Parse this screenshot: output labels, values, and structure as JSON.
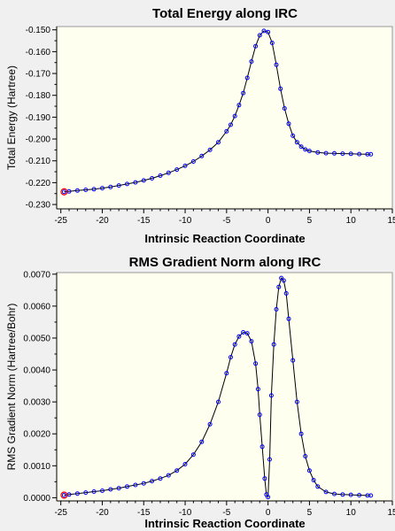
{
  "chart_data": [
    {
      "type": "line",
      "title": "Total Energy along IRC",
      "xlabel": "Intrinsic Reaction Coordinate",
      "ylabel": "Total Energy (Hartree)",
      "xlim": [
        -25.5,
        15
      ],
      "ylim": [
        -0.232,
        -0.1485
      ],
      "xticks": [
        -25,
        -20,
        -15,
        -10,
        -5,
        0,
        5,
        10,
        15
      ],
      "yticks": [
        "-0.150",
        "-0.160",
        "-0.170",
        "-0.180",
        "-0.190",
        "-0.200",
        "-0.210",
        "-0.220",
        "-0.230"
      ],
      "grid": false,
      "legend": "none",
      "plot_bg": "#fffff0",
      "line_color": "#000000",
      "marker_color": "#0000ff",
      "highlight_color": "#ff0000",
      "highlight_point": [
        -24.6,
        -0.2242
      ],
      "series": [
        {
          "x": [
            -24.6,
            -24,
            -23,
            -22,
            -21,
            -20,
            -19,
            -18,
            -17,
            -16,
            -15,
            -14,
            -13,
            -12,
            -11,
            -10,
            -9,
            -8,
            -7,
            -6,
            -5,
            -4.5,
            -4,
            -3.5,
            -3,
            -2.5,
            -2,
            -1.5,
            -1,
            -0.5,
            0,
            0.5,
            1,
            1.5,
            2,
            2.5,
            3,
            3.5,
            4,
            4.5,
            5,
            6,
            7,
            8,
            9,
            10,
            11,
            12,
            12.4
          ],
          "y": [
            -0.2242,
            -0.224,
            -0.2236,
            -0.2233,
            -0.223,
            -0.2225,
            -0.222,
            -0.2213,
            -0.2206,
            -0.2199,
            -0.219,
            -0.218,
            -0.2168,
            -0.2155,
            -0.214,
            -0.2123,
            -0.2103,
            -0.2078,
            -0.205,
            -0.2015,
            -0.1965,
            -0.1935,
            -0.1895,
            -0.1845,
            -0.179,
            -0.172,
            -0.1645,
            -0.1575,
            -0.1525,
            -0.1505,
            -0.151,
            -0.156,
            -0.166,
            -0.177,
            -0.186,
            -0.193,
            -0.1985,
            -0.2015,
            -0.2035,
            -0.2048,
            -0.2055,
            -0.2062,
            -0.2065,
            -0.2066,
            -0.2067,
            -0.2068,
            -0.2069,
            -0.207,
            -0.207
          ]
        }
      ]
    },
    {
      "type": "line",
      "title": "RMS Gradient Norm along IRC",
      "xlabel": "Intrinsic Reaction Coordinate",
      "ylabel": "RMS Gradient Norm (Hartree/Bohr)",
      "xlim": [
        -25.5,
        15
      ],
      "ylim": [
        -0.0001,
        0.00705
      ],
      "xticks": [
        -25,
        -20,
        -15,
        -10,
        -5,
        0,
        5,
        10,
        15
      ],
      "yticks": [
        "0.0000",
        "0.0010",
        "0.0020",
        "0.0030",
        "0.0040",
        "0.0050",
        "0.0060",
        "0.0070"
      ],
      "grid": false,
      "legend": "none",
      "plot_bg": "#fffff0",
      "line_color": "#000000",
      "marker_color": "#0000ff",
      "highlight_color": "#ff0000",
      "highlight_point": [
        -24.6,
        8e-05
      ],
      "series": [
        {
          "x": [
            -24.6,
            -24,
            -23,
            -22,
            -21,
            -20,
            -19,
            -18,
            -17,
            -16,
            -15,
            -14,
            -13,
            -12,
            -11,
            -10,
            -9,
            -8,
            -7,
            -6,
            -5,
            -4.5,
            -4,
            -3.5,
            -3,
            -2.5,
            -2,
            -1.5,
            -1.2,
            -1,
            -0.7,
            -0.4,
            -0.2,
            0,
            0.2,
            0.4,
            0.7,
            1,
            1.3,
            1.6,
            1.9,
            2.2,
            2.5,
            3,
            3.5,
            4,
            4.5,
            5,
            5.5,
            6,
            7,
            8,
            9,
            10,
            11,
            12,
            12.4
          ],
          "y": [
            8e-05,
            0.0001,
            0.00013,
            0.00016,
            0.00019,
            0.00022,
            0.00026,
            0.0003,
            0.00035,
            0.0004,
            0.00045,
            0.00052,
            0.0006,
            0.0007,
            0.00085,
            0.00105,
            0.00135,
            0.00175,
            0.0023,
            0.003,
            0.0039,
            0.0044,
            0.0048,
            0.00505,
            0.00518,
            0.00515,
            0.0049,
            0.0042,
            0.0034,
            0.0026,
            0.0016,
            0.0006,
            0.0001,
            2e-05,
            0.0012,
            0.0032,
            0.0048,
            0.0059,
            0.0066,
            0.00688,
            0.0068,
            0.0064,
            0.0056,
            0.0043,
            0.003,
            0.002,
            0.0013,
            0.00085,
            0.00055,
            0.00035,
            0.00018,
            0.00012,
            0.0001,
            9e-05,
            8e-05,
            7e-05,
            7e-05
          ]
        }
      ]
    }
  ]
}
